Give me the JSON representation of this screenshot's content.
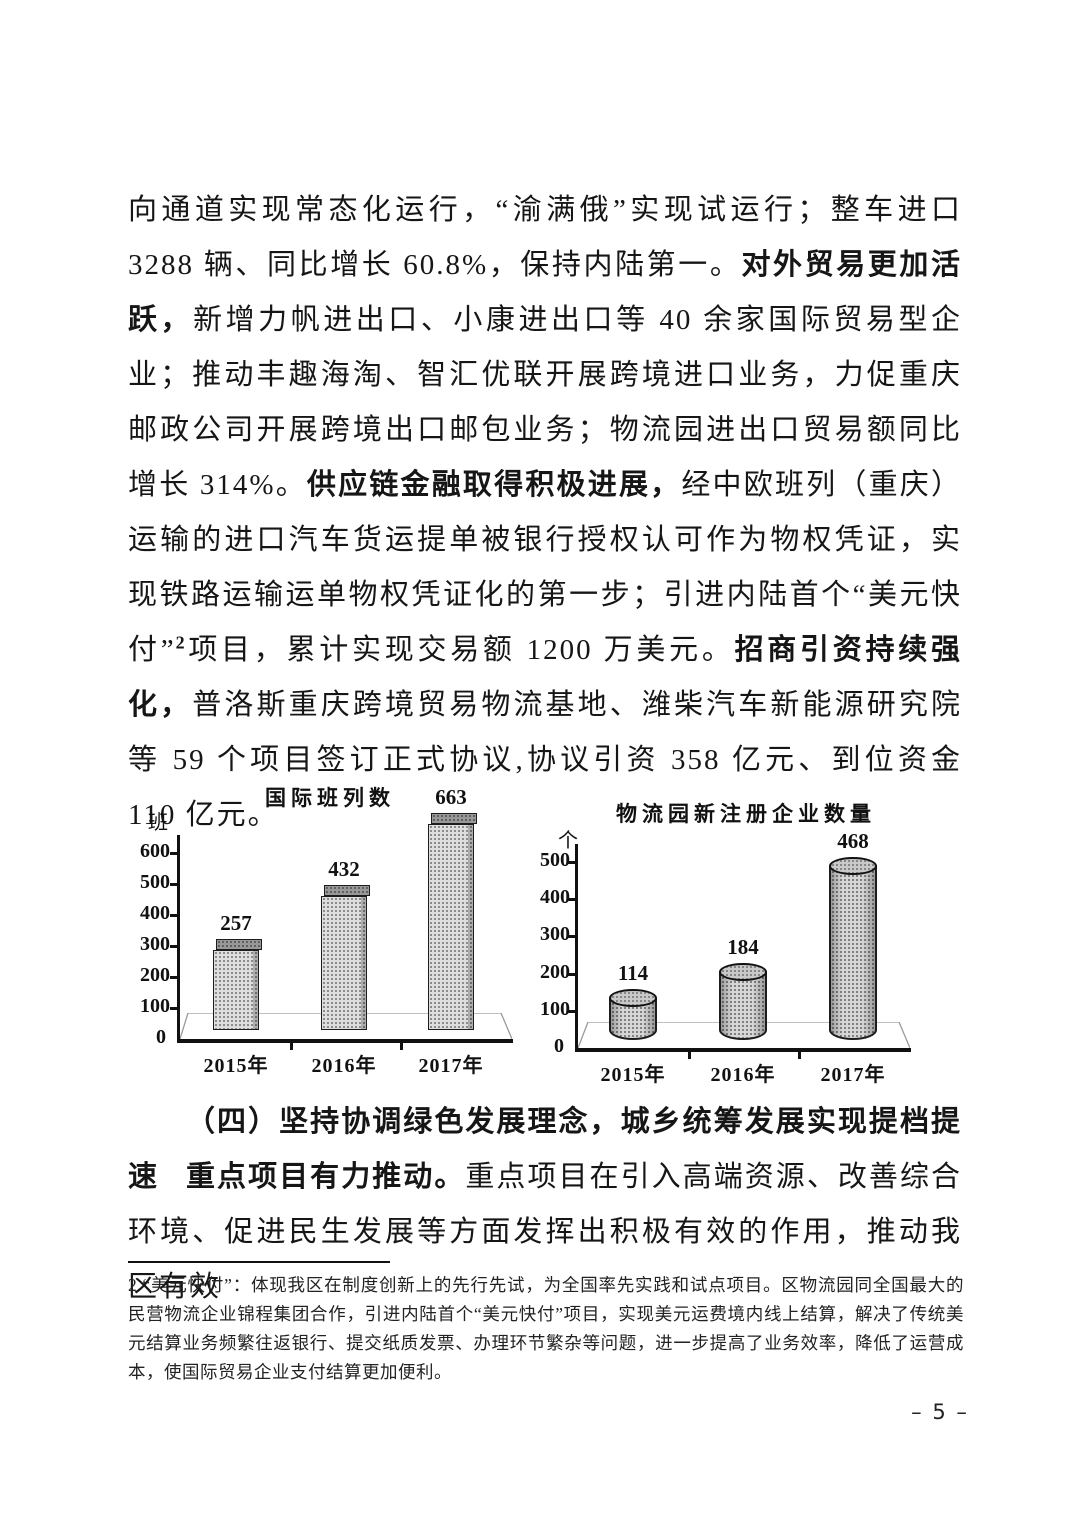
{
  "document": {
    "para1_runs": [
      {
        "text": "向通道实现常态化运行，“渝满俄”实现试运行；整车进口 3288 辆、同比增长 60.8%，保持内陆第一。",
        "bold": false
      },
      {
        "text": "对外贸易更加活跃，",
        "bold": true
      },
      {
        "text": "新增力帆进出口、小康进出口等 40 余家国际贸易型企业；推动丰趣海淘、智汇优联开展跨境进口业务，力促重庆邮政公司开展跨境出口邮包业务；物流园进出口贸易额同比增长 314%。",
        "bold": false
      },
      {
        "text": "供应链金融取得积极进展，",
        "bold": true
      },
      {
        "text": "经中欧班列（重庆）运输的进口汽车货运提单被银行授权认可作为物权凭证，实现铁路运输运单物权凭证化的第一步；引进内陆首个“美元快付”",
        "bold": false
      },
      {
        "text": "2",
        "bold": false,
        "sup": true
      },
      {
        "text": "项目，累计实现交易额 1200 万美元。",
        "bold": false
      },
      {
        "text": "招商引资持续强化，",
        "bold": true
      },
      {
        "text": "普洛斯重庆跨境贸易物流基地、潍柴汽车新能源研究院等 59 个项目签订正式协议,协议引资 358 亿元、到位资金 110 亿元。",
        "bold": false
      }
    ],
    "section_heading": "（四）坚持协调绿色发展理念，城乡统筹发展实现提档提速",
    "para2_runs": [
      {
        "text": "重点项目有力推动。",
        "bold": true
      },
      {
        "text": "重点项目在引入高端资源、改善综合环境、促进民生发展等方面发挥出积极有效的作用，推动我区有效",
        "bold": false
      }
    ],
    "footnote": "2 “美元快付”：体现我区在制度创新上的先行先试，为全国率先实践和试点项目。区物流园同全国最大的民营物流企业锦程集团合作，引进内陆首个“美元快付”项目，实现美元运费境内线上结算，解决了传统美元结算业务频繁往返银行、提交纸质发票、办理环节繁杂等问题，进一步提高了业务效率，降低了运营成本，使国际贸易企业支付结算更加便利。",
    "page_number": "– 5 –"
  },
  "chart_data": [
    {
      "type": "bar",
      "style": "box3d",
      "title": "国际班列数",
      "unit": "班",
      "categories": [
        "2015年",
        "2016年",
        "2017年"
      ],
      "values": [
        257,
        432,
        663
      ],
      "yticks": [
        0,
        100,
        200,
        300,
        400,
        500,
        600
      ],
      "ylim": [
        0,
        680
      ],
      "grid": false,
      "data_labels": [
        257,
        432,
        663
      ],
      "legend": "none"
    },
    {
      "type": "bar",
      "style": "cylinder3d",
      "title": "物流园新注册企业数量",
      "unit": "个",
      "categories": [
        "2015年",
        "2016年",
        "2017年"
      ],
      "values": [
        114,
        184,
        468
      ],
      "yticks": [
        0,
        100,
        200,
        300,
        400,
        500
      ],
      "ylim": [
        0,
        540
      ],
      "grid": false,
      "data_labels": [
        114,
        184,
        468
      ],
      "legend": "none"
    }
  ]
}
